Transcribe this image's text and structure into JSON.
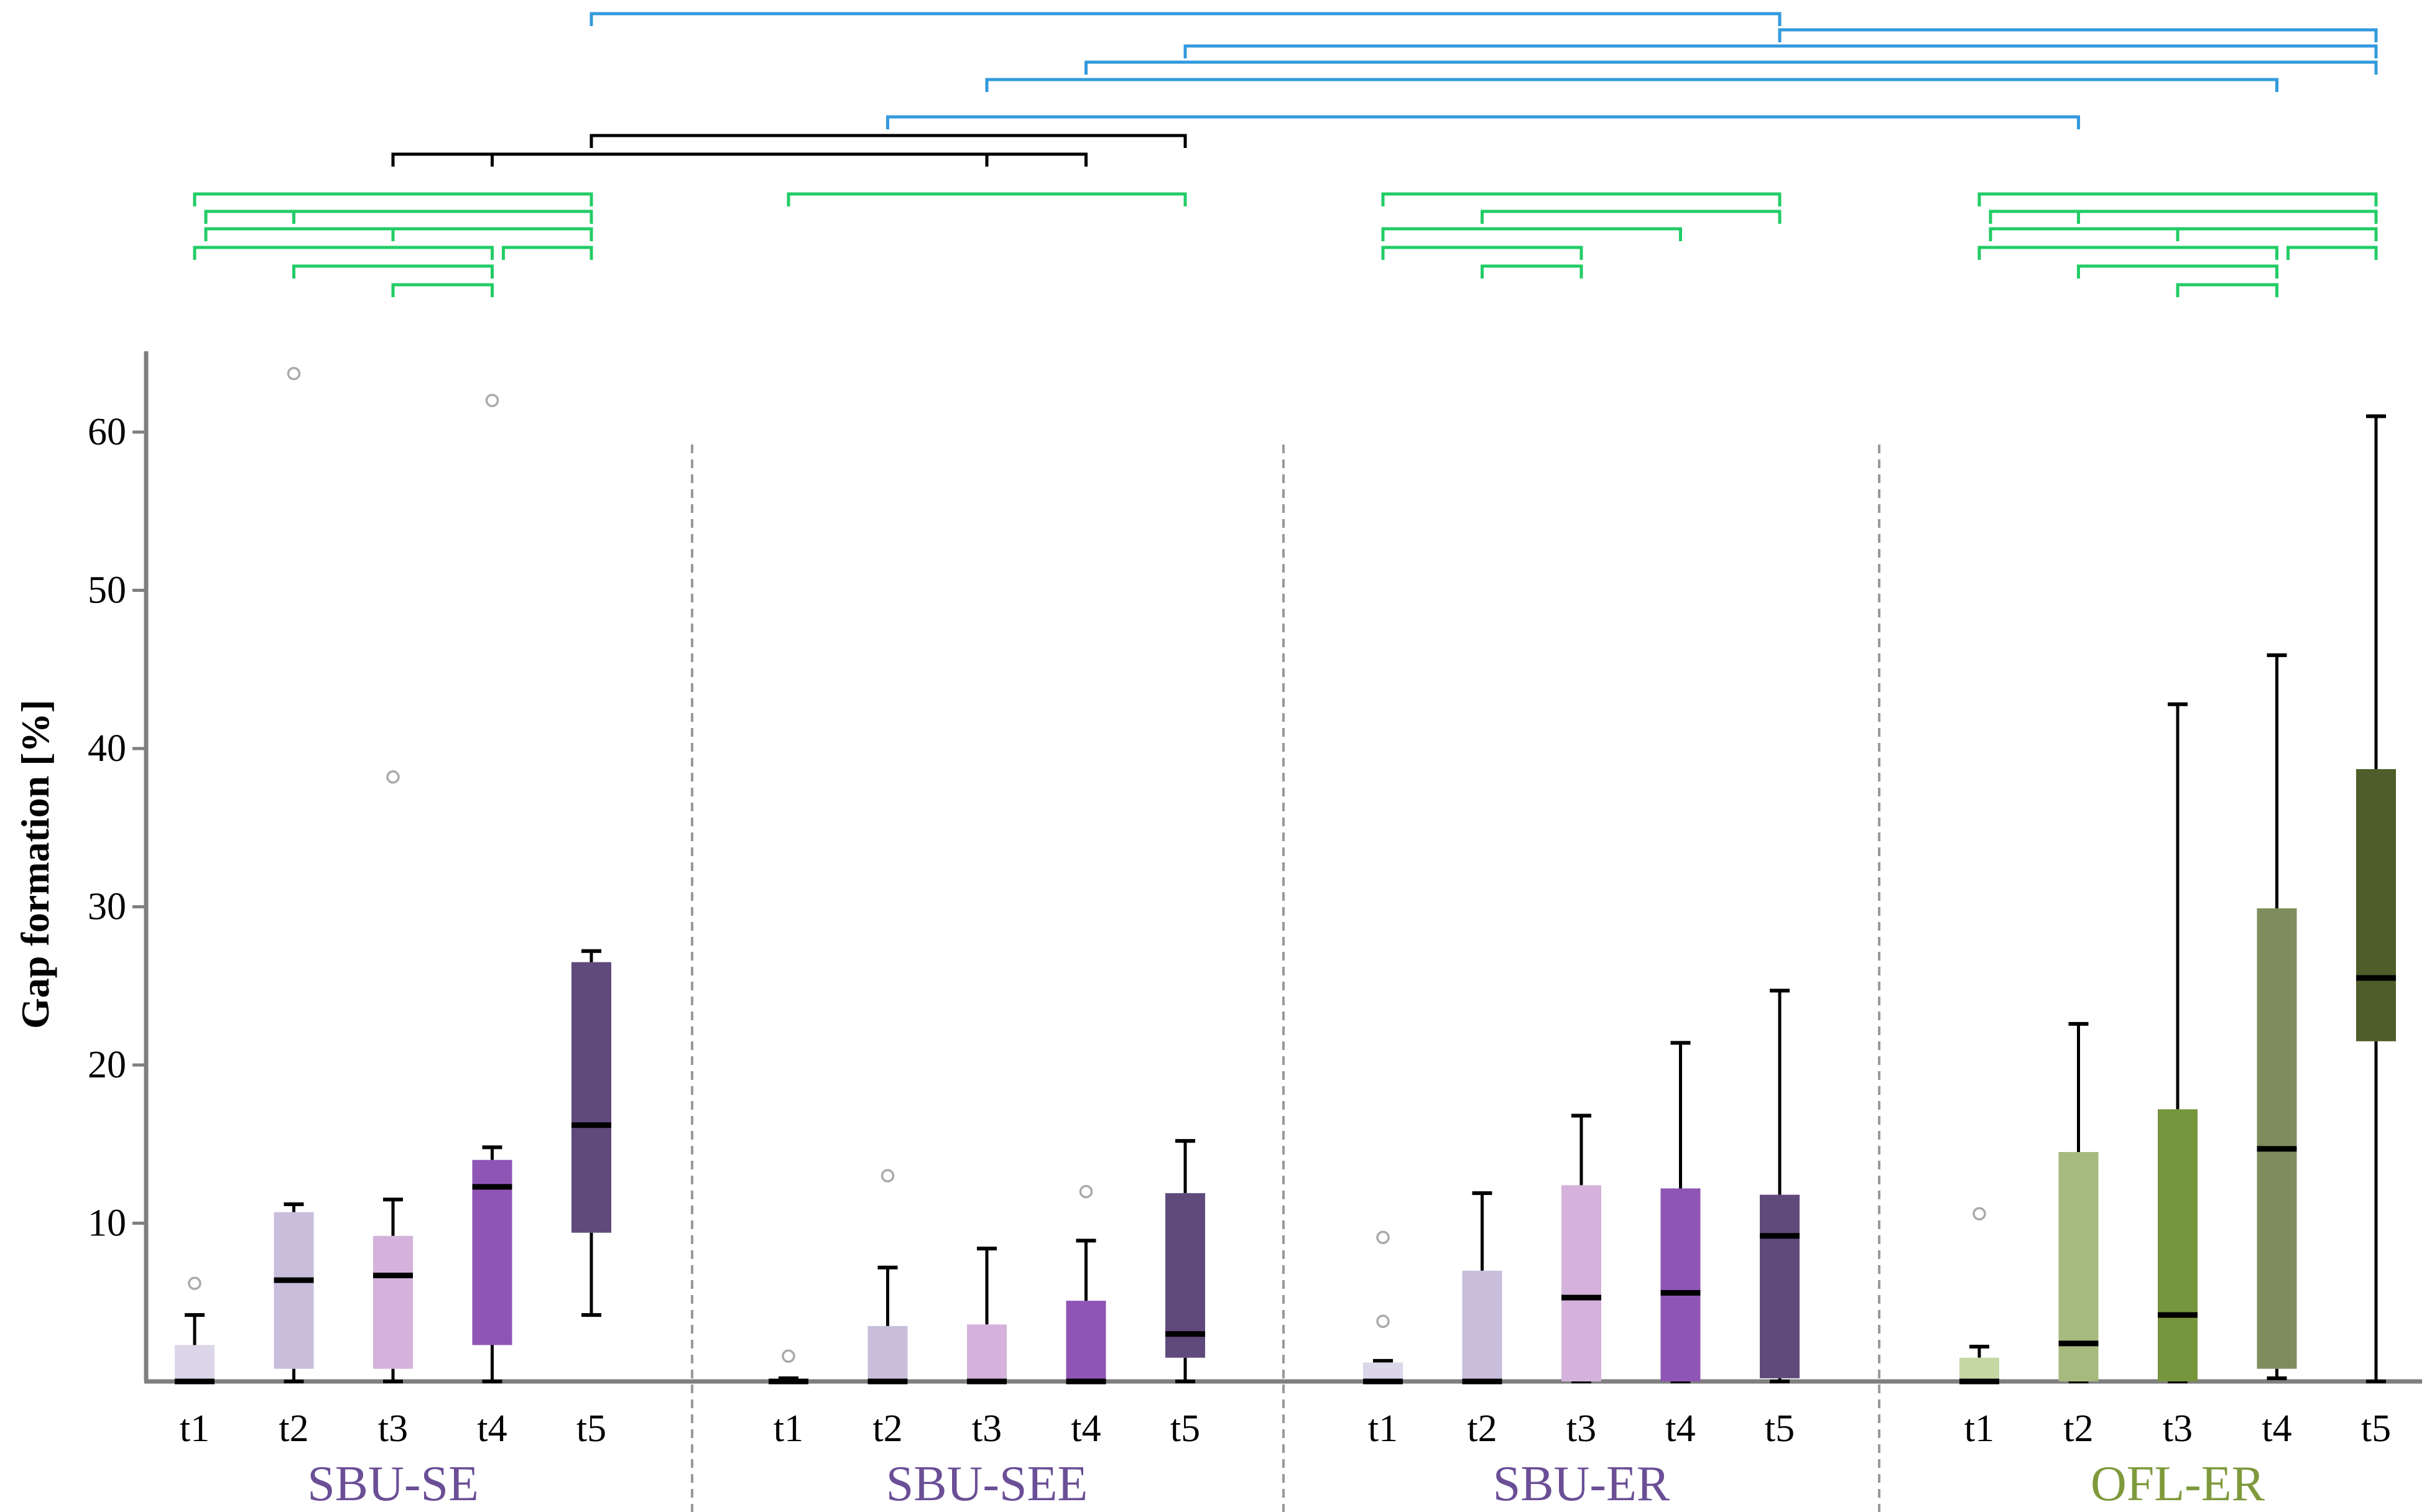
{
  "chart_data": {
    "type": "box",
    "ylabel": "Gap formation  [%]",
    "ylim": [
      0,
      65
    ],
    "yticks": [
      10,
      20,
      30,
      40,
      50,
      60
    ],
    "groups": [
      {
        "name": "SBU-SE",
        "color": "#6b4f96",
        "boxes": [
          {
            "label": "t1",
            "min": 0,
            "q1": 0,
            "median": 0,
            "q3": 2.3,
            "max": 4.2,
            "outliers": [
              6.2
            ],
            "color": "#dcd6e9"
          },
          {
            "label": "t2",
            "min": 0,
            "q1": 0.8,
            "median": 6.4,
            "q3": 10.7,
            "max": 11.2,
            "outliers": [
              63.7
            ],
            "color": "#c8bedc"
          },
          {
            "label": "t3",
            "min": 0,
            "q1": 0.8,
            "median": 6.7,
            "q3": 9.2,
            "max": 11.5,
            "outliers": [
              38.2
            ],
            "color": "#d4b2dc"
          },
          {
            "label": "t4",
            "min": 0,
            "q1": 2.3,
            "median": 12.3,
            "q3": 14.0,
            "max": 14.8,
            "outliers": [
              62.0
            ],
            "color": "#8e55b5"
          },
          {
            "label": "t5",
            "min": 4.2,
            "q1": 9.4,
            "median": 16.2,
            "q3": 26.5,
            "max": 27.2,
            "outliers": [],
            "color": "#604a7b"
          }
        ]
      },
      {
        "name": "SBU-SEE",
        "color": "#6b4f96",
        "boxes": [
          {
            "label": "t1",
            "min": 0,
            "q1": 0,
            "median": 0,
            "q3": 0,
            "max": 0.2,
            "outliers": [
              1.6
            ],
            "color": "#dcd6e9"
          },
          {
            "label": "t2",
            "min": 0,
            "q1": 0,
            "median": 0,
            "q3": 3.5,
            "max": 7.2,
            "outliers": [
              13.0
            ],
            "color": "#c8bedc"
          },
          {
            "label": "t3",
            "min": 0,
            "q1": 0,
            "median": 0,
            "q3": 3.6,
            "max": 8.4,
            "outliers": [],
            "color": "#d4b2dc"
          },
          {
            "label": "t4",
            "min": 0,
            "q1": 0,
            "median": 0,
            "q3": 5.1,
            "max": 8.9,
            "outliers": [
              12.0
            ],
            "color": "#8e55b5"
          },
          {
            "label": "t5",
            "min": 0,
            "q1": 1.5,
            "median": 3.0,
            "q3": 11.9,
            "max": 15.2,
            "outliers": [],
            "color": "#604a7b"
          }
        ]
      },
      {
        "name": "SBU-ER",
        "color": "#6b4f96",
        "boxes": [
          {
            "label": "t1",
            "min": 0,
            "q1": 0,
            "median": 0,
            "q3": 1.2,
            "max": 1.3,
            "outliers": [
              3.8,
              9.1
            ],
            "color": "#dcd6e9"
          },
          {
            "label": "t2",
            "min": 0,
            "q1": 0,
            "median": 0,
            "q3": 7.0,
            "max": 11.9,
            "outliers": [],
            "color": "#c8bedc"
          },
          {
            "label": "t3",
            "min": 0,
            "q1": 0,
            "median": 5.3,
            "q3": 12.4,
            "max": 16.8,
            "outliers": [],
            "color": "#d4b2dc"
          },
          {
            "label": "t4",
            "min": 0,
            "q1": 0,
            "median": 5.6,
            "q3": 12.2,
            "max": 21.4,
            "outliers": [],
            "color": "#8e55b5"
          },
          {
            "label": "t5",
            "min": 0,
            "q1": 0.2,
            "median": 9.2,
            "q3": 11.8,
            "max": 24.7,
            "outliers": [],
            "color": "#604a7b"
          }
        ]
      },
      {
        "name": "OFL-ER",
        "color": "#7e9a3c",
        "boxes": [
          {
            "label": "t1",
            "min": 0,
            "q1": 0,
            "median": 0,
            "q3": 1.5,
            "max": 2.2,
            "outliers": [
              10.6
            ],
            "color": "#c6d9a4"
          },
          {
            "label": "t2",
            "min": 0,
            "q1": 0,
            "median": 2.4,
            "q3": 14.5,
            "max": 22.6,
            "outliers": [],
            "color": "#a6ba7e"
          },
          {
            "label": "t3",
            "min": 0,
            "q1": 0,
            "median": 4.2,
            "q3": 17.2,
            "max": 42.8,
            "outliers": [],
            "color": "#77953d"
          },
          {
            "label": "t4",
            "min": 0.2,
            "q1": 0.8,
            "median": 14.7,
            "q3": 29.9,
            "max": 45.9,
            "outliers": [],
            "color": "#7e8d5e"
          },
          {
            "label": "t5",
            "min": 0,
            "q1": 21.5,
            "median": 25.5,
            "q3": 38.7,
            "max": 61.0,
            "outliers": [],
            "color": "#4d5e2a"
          }
        ]
      }
    ],
    "significance_brackets": {
      "within_group": [
        {
          "group": 0,
          "pairs": [
            [
              1,
              5
            ],
            [
              2,
              5
            ],
            [
              3,
              5
            ],
            [
              1,
              4
            ],
            [
              2,
              4
            ],
            [
              1,
              3
            ],
            [
              1,
              2
            ],
            [
              3,
              4
            ],
            [
              4,
              5
            ]
          ],
          "color": "#22cc66"
        },
        {
          "group": 1,
          "pairs": [
            [
              1,
              5
            ]
          ],
          "color": "#22cc66"
        },
        {
          "group": 2,
          "pairs": [
            [
              1,
              5
            ],
            [
              2,
              5
            ],
            [
              1,
              4
            ],
            [
              1,
              3
            ],
            [
              2,
              3
            ]
          ],
          "color": "#22cc66"
        },
        {
          "group": 3,
          "pairs": [
            [
              1,
              5
            ],
            [
              2,
              5
            ],
            [
              3,
              5
            ],
            [
              1,
              4
            ],
            [
              2,
              4
            ],
            [
              1,
              3
            ],
            [
              1,
              2
            ],
            [
              3,
              4
            ],
            [
              4,
              5
            ]
          ],
          "color": "#22cc66"
        }
      ],
      "between_groups": [
        {
          "from": [
            0,
            5
          ],
          "to": [
            2,
            5
          ],
          "color": "#3399dd"
        },
        {
          "from": [
            2,
            5
          ],
          "to": [
            3,
            5
          ],
          "color": "#3399dd"
        },
        {
          "from": [
            1,
            5
          ],
          "to": [
            3,
            5
          ],
          "color": "#3399dd"
        },
        {
          "from": [
            1,
            4
          ],
          "to": [
            3,
            5
          ],
          "color": "#3399dd"
        },
        {
          "from": [
            1,
            3
          ],
          "to": [
            3,
            4
          ],
          "color": "#3399dd"
        },
        {
          "from": [
            1,
            2
          ],
          "to": [
            3,
            2
          ],
          "color": "#3399dd"
        },
        {
          "from": [
            0,
            5
          ],
          "to": [
            1,
            5
          ],
          "color": "#000000"
        },
        {
          "from": [
            0,
            4
          ],
          "to": [
            1,
            4
          ],
          "color": "#000000"
        },
        {
          "from": [
            0,
            3
          ],
          "to": [
            1,
            3
          ],
          "color": "#000000"
        }
      ]
    }
  }
}
